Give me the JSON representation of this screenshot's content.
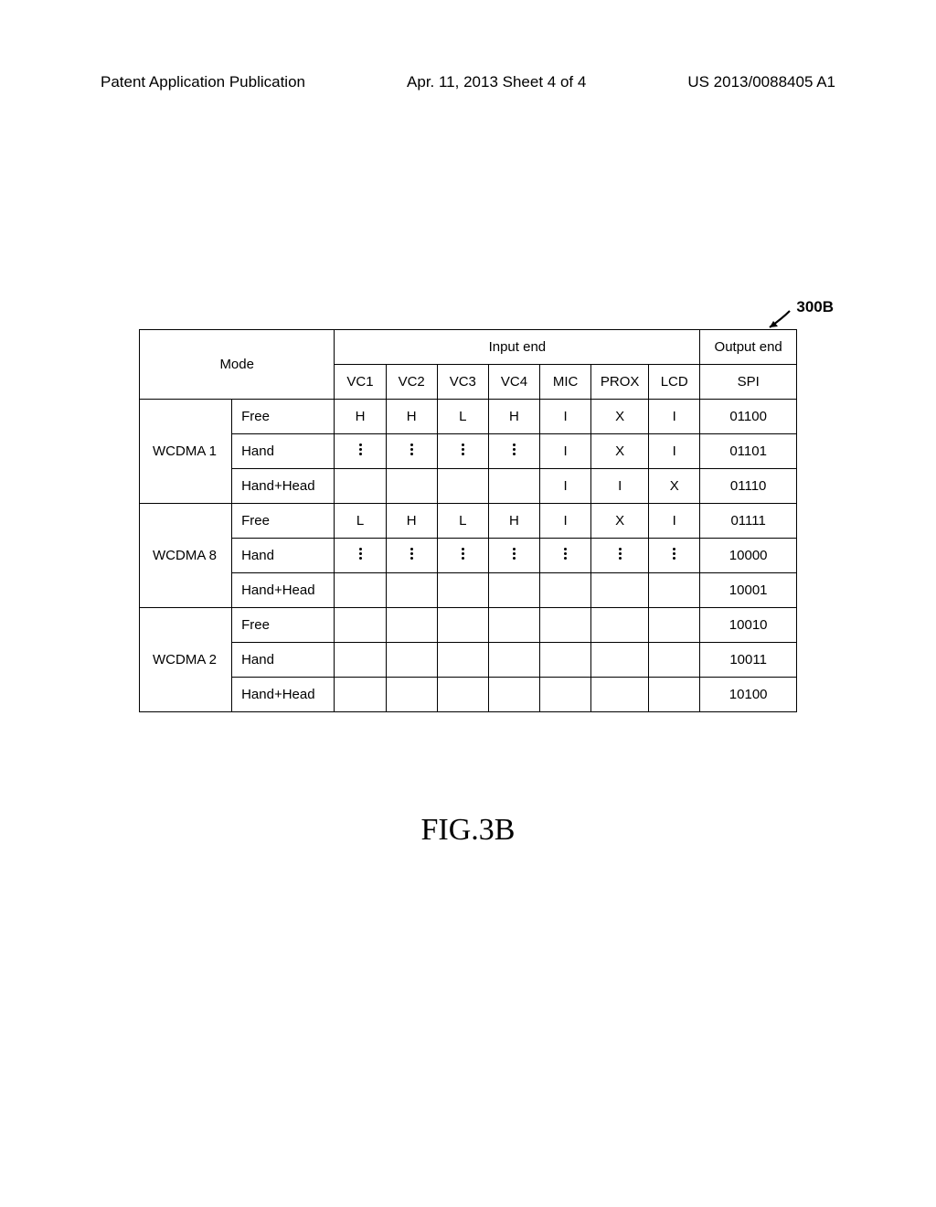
{
  "header": {
    "left": "Patent Application Publication",
    "mid": "Apr. 11, 2013  Sheet 4 of 4",
    "right": "US 2013/0088405 A1"
  },
  "figure": {
    "ref_label": "300B",
    "caption": "FIG.3B"
  },
  "table": {
    "top_headers": {
      "mode": "Mode",
      "input_end": "Input end",
      "output_end": "Output end"
    },
    "sub_headers": {
      "vc1": "VC1",
      "vc2": "VC2",
      "vc3": "VC3",
      "vc4": "VC4",
      "mic": "MIC",
      "prox": "PROX",
      "lcd": "LCD",
      "spi": "SPI"
    },
    "groups": [
      {
        "name": "WCDMA 1",
        "rows": [
          {
            "label": "Free",
            "vc1": "H",
            "vc2": "H",
            "vc3": "L",
            "vc4": "H",
            "mic": "I",
            "prox": "X",
            "lcd": "I",
            "spi": "01100"
          },
          {
            "label": "Hand",
            "vc1": "⋮",
            "vc2": "⋮",
            "vc3": "⋮",
            "vc4": "⋮",
            "mic": "I",
            "prox": "X",
            "lcd": "I",
            "spi": "01101"
          },
          {
            "label": "Hand+Head",
            "vc1": "",
            "vc2": "",
            "vc3": "",
            "vc4": "",
            "mic": "I",
            "prox": "I",
            "lcd": "X",
            "spi": "01110"
          }
        ]
      },
      {
        "name": "WCDMA 8",
        "rows": [
          {
            "label": "Free",
            "vc1": "L",
            "vc2": "H",
            "vc3": "L",
            "vc4": "H",
            "mic": "I",
            "prox": "X",
            "lcd": "I",
            "spi": "01111"
          },
          {
            "label": "Hand",
            "vc1": "⋮",
            "vc2": "⋮",
            "vc3": "⋮",
            "vc4": "⋮",
            "mic": "⋮",
            "prox": "⋮",
            "lcd": "⋮",
            "spi": "10000"
          },
          {
            "label": "Hand+Head",
            "vc1": "",
            "vc2": "",
            "vc3": "",
            "vc4": "",
            "mic": "",
            "prox": "",
            "lcd": "",
            "spi": "10001"
          }
        ]
      },
      {
        "name": "WCDMA 2",
        "rows": [
          {
            "label": "Free",
            "vc1": "",
            "vc2": "",
            "vc3": "",
            "vc4": "",
            "mic": "",
            "prox": "",
            "lcd": "",
            "spi": "10010"
          },
          {
            "label": "Hand",
            "vc1": "",
            "vc2": "",
            "vc3": "",
            "vc4": "",
            "mic": "",
            "prox": "",
            "lcd": "",
            "spi": "10011"
          },
          {
            "label": "Hand+Head",
            "vc1": "",
            "vc2": "",
            "vc3": "",
            "vc4": "",
            "mic": "",
            "prox": "",
            "lcd": "",
            "spi": "10100"
          }
        ]
      }
    ]
  }
}
